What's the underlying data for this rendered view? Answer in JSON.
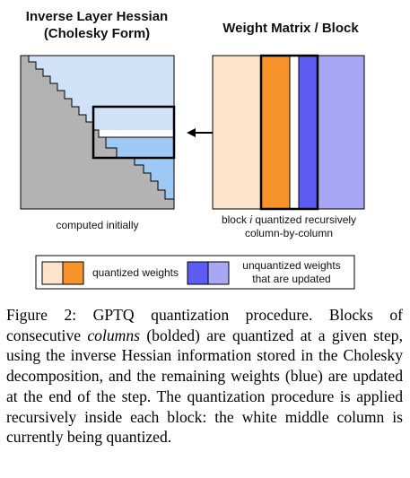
{
  "figure": {
    "left_title_line1": "Inverse Layer Hessian",
    "left_title_line2": "(Cholesky Form)",
    "right_title": "Weight Matrix / Block",
    "left_caption": "computed initially",
    "right_caption_line1_pre": "block ",
    "right_caption_line1_italic": "i",
    "right_caption_line1_post": " quantized recursively",
    "right_caption_line2": "column-by-column",
    "legend_quantized": "quantized weights",
    "legend_unquantized_line1": "unquantized weights",
    "legend_unquantized_line2": "that are updated",
    "colors": {
      "gray": "#b3b3b3",
      "light_orange": "#fde3cc",
      "orange": "#f7932a",
      "blue": "#5c5cf2",
      "light_blue_matrix": "#a7a7f5",
      "light_blue_hessian": "#d0e2f7",
      "mid_blue_hessian": "#9ec9f4"
    }
  },
  "caption": {
    "lead": "Figure 2: GPTQ quantization procedure. Blocks of consecutive ",
    "italic": "columns",
    "rest": " (bolded) are quantized at a given step, using the inverse Hessian information stored in the Cholesky decomposition, and the remaining weights (blue) are updated at the end of the step. The quantization procedure is applied recursively inside each block: the white middle column is currently being quantized."
  }
}
